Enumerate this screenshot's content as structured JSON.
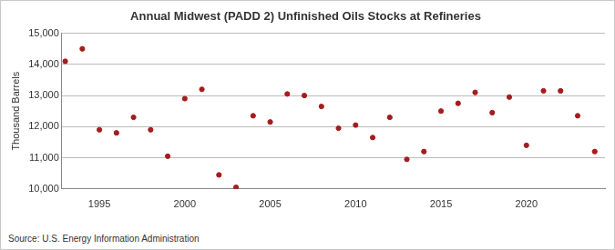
{
  "chart_data": {
    "type": "scatter",
    "title": "Annual Midwest (PADD 2) Unfinished Oils Stocks at Refineries",
    "y_label": "Thousand Barrels",
    "source": "Source: U.S. Energy Information Administration",
    "x": [
      1993,
      1994,
      1995,
      1996,
      1997,
      1998,
      1999,
      2000,
      2001,
      2002,
      2003,
      2004,
      2005,
      2006,
      2007,
      2008,
      2009,
      2010,
      2011,
      2012,
      2013,
      2014,
      2015,
      2016,
      2017,
      2018,
      2019,
      2020,
      2021,
      2022,
      2023,
      2024
    ],
    "values": [
      14100,
      14500,
      11900,
      11800,
      12300,
      11900,
      11050,
      12900,
      13200,
      10450,
      10050,
      12350,
      12150,
      13050,
      13000,
      12650,
      11950,
      12050,
      11650,
      12300,
      10950,
      11200,
      12500,
      12750,
      13100,
      12450,
      12950,
      11400,
      13150,
      13150,
      12350,
      11200
    ],
    "color": "#a51c1c",
    "marker": "circle",
    "xlim": [
      1992.8,
      2024.6
    ],
    "xticks": [
      1995,
      2000,
      2005,
      2010,
      2015,
      2020
    ],
    "ylim": [
      10000,
      15000
    ],
    "yticks": [
      {
        "value": 10000,
        "label": "10,000"
      },
      {
        "value": 11000,
        "label": "11,000"
      },
      {
        "value": 12000,
        "label": "12,000"
      },
      {
        "value": 13000,
        "label": "13,000"
      },
      {
        "value": 14000,
        "label": "14,000"
      },
      {
        "value": 15000,
        "label": "15,000"
      }
    ],
    "grid": true
  }
}
